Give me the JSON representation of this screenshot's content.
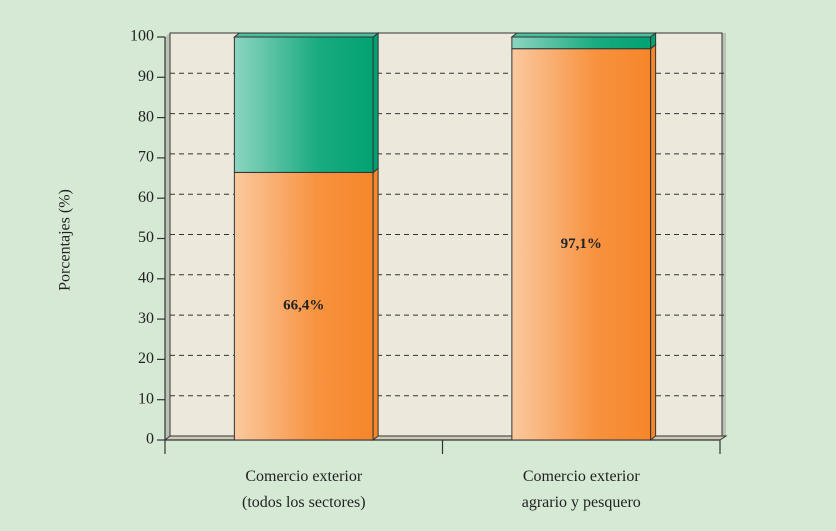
{
  "chart_data": {
    "type": "stacked_bar",
    "y_label": "Porcentajes (%)",
    "categories": [
      "Comercio exterior\n(todos los sectores)",
      "Comercio exterior\nagrario y pesquero"
    ],
    "series": [
      {
        "color": "#f6862a",
        "values": [
          66.4,
          97.1
        ],
        "value_labels": [
          "66,4%",
          "97,1%"
        ]
      },
      {
        "color": "#00a273",
        "values": [
          33.6,
          2.9
        ]
      }
    ],
    "ylim": [
      0,
      100
    ],
    "yticks": [
      0,
      10,
      20,
      30,
      40,
      50,
      60,
      70,
      80,
      90,
      100
    ],
    "grid": true
  }
}
